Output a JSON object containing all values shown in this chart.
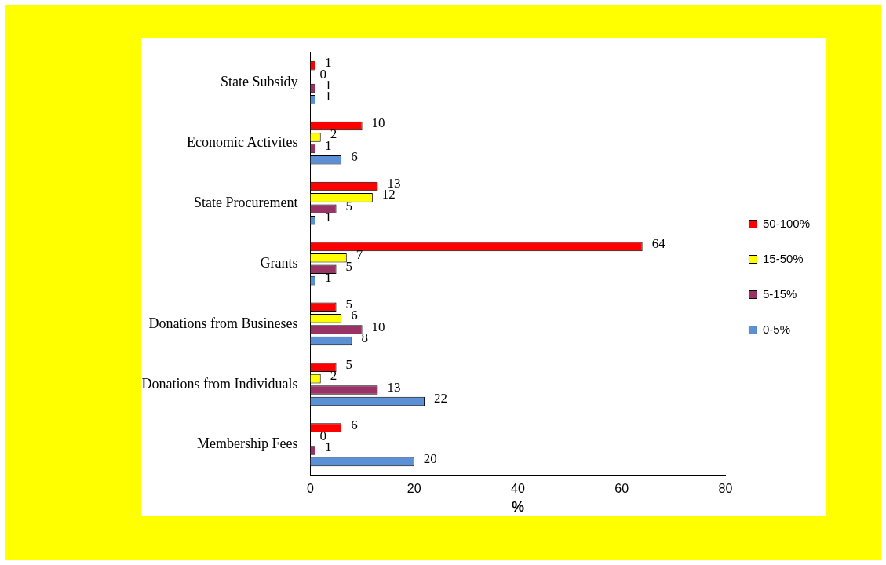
{
  "chart_data": {
    "type": "bar",
    "orientation": "horizontal",
    "xlabel": "%",
    "categories": [
      "State Subsidy",
      "Economic Activites",
      "State Procurement",
      "Grants",
      "Donations from Busineses",
      "Donations from Individuals",
      "Membership Fees"
    ],
    "series": [
      {
        "name": "50-100%",
        "color": "#ff0000",
        "values": [
          1,
          10,
          13,
          64,
          5,
          5,
          6
        ]
      },
      {
        "name": "15-50%",
        "color": "#ffff00",
        "values": [
          0,
          2,
          12,
          7,
          6,
          2,
          0
        ]
      },
      {
        "name": "5-15%",
        "color": "#993366",
        "values": [
          1,
          1,
          5,
          5,
          10,
          13,
          1
        ]
      },
      {
        "name": "0-5%",
        "color": "#5b8fd6",
        "values": [
          1,
          6,
          1,
          1,
          8,
          22,
          20
        ]
      }
    ],
    "xlim": [
      0,
      80
    ],
    "xticks": [
      0,
      20,
      40,
      60,
      80
    ],
    "data_labels": true,
    "legend": "right",
    "grid": false
  }
}
